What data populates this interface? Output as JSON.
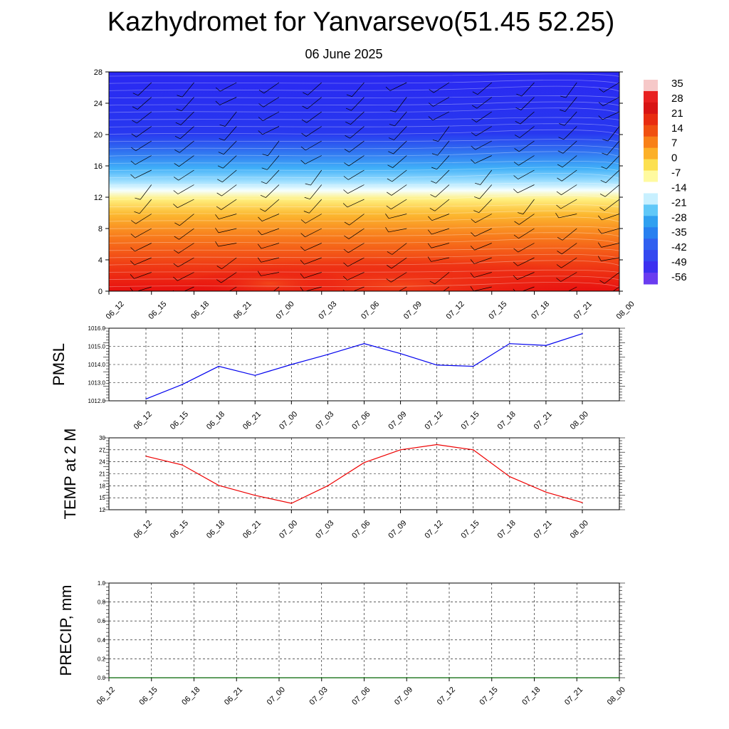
{
  "title": "Kazhydromet for Yanvarsevo(51.45 52.25)",
  "subtitle": "06 June 2025",
  "colorbar_labels": [
    "35",
    "28",
    "21",
    "14",
    "7",
    "0",
    "-7",
    "-14",
    "-21",
    "-28",
    "-35",
    "-42",
    "-49",
    "-56"
  ],
  "chart_data": [
    {
      "type": "heatmap",
      "x_tick_labels": [
        "06_12",
        "06_15",
        "06_18",
        "06_21",
        "07_00",
        "07_03",
        "07_06",
        "07_09",
        "07_12",
        "07_15",
        "07_18",
        "07_21",
        "08_00"
      ],
      "y_tick_labels": [
        "0",
        "4",
        "8",
        "12",
        "16",
        "20",
        "24",
        "28"
      ],
      "ylim": [
        0,
        28
      ],
      "colorscale_range": [
        -56,
        35
      ],
      "colors": {
        "cold": "#2828f0",
        "mid": "#fff080",
        "warm": "#e81010"
      }
    },
    {
      "type": "line",
      "ylabel": "PMSL",
      "categories": [
        "06_12",
        "06_15",
        "06_18",
        "06_21",
        "07_00",
        "07_03",
        "07_06",
        "07_09",
        "07_12",
        "07_15",
        "07_18",
        "07_21",
        "08_00"
      ],
      "values": [
        1012.1,
        1012.9,
        1013.9,
        1013.4,
        1014.0,
        1014.55,
        1015.15,
        1014.6,
        1013.97,
        1013.9,
        1015.15,
        1015.05,
        1015.7
      ],
      "ylim": [
        1012.0,
        1016.0
      ],
      "y_tick_labels": [
        "1012.0",
        "1013.0",
        "1014.0",
        "1015.0",
        "1016.0"
      ],
      "color": "#0000ee",
      "grid": true
    },
    {
      "type": "line",
      "ylabel": "TEMP at 2 M",
      "categories": [
        "06_12",
        "06_15",
        "06_18",
        "06_21",
        "07_00",
        "07_03",
        "07_06",
        "07_09",
        "07_12",
        "07_15",
        "07_18",
        "07_21",
        "08_00"
      ],
      "values": [
        25.4,
        23.2,
        18.1,
        15.6,
        13.6,
        18.0,
        23.8,
        27.0,
        28.3,
        27.0,
        20.3,
        16.4,
        13.8
      ],
      "ylim": [
        12,
        30
      ],
      "y_tick_labels": [
        "12",
        "15",
        "18",
        "21",
        "24",
        "27",
        "30"
      ],
      "color": "#ee0000",
      "grid": true
    },
    {
      "type": "line",
      "ylabel": "PRECIP, mm",
      "categories": [
        "06_12",
        "06_15",
        "06_18",
        "06_21",
        "07_00",
        "07_03",
        "07_06",
        "07_09",
        "07_12",
        "07_15",
        "07_18",
        "07_21",
        "08_00"
      ],
      "values": [
        0,
        0,
        0,
        0,
        0,
        0,
        0,
        0,
        0,
        0,
        0,
        0,
        0
      ],
      "ylim": [
        0.0,
        1.0
      ],
      "y_tick_labels": [
        "0.0",
        "0.2",
        "0.4",
        "0.6",
        "0.8",
        "1.0"
      ],
      "color": "#006400",
      "grid": true
    }
  ]
}
